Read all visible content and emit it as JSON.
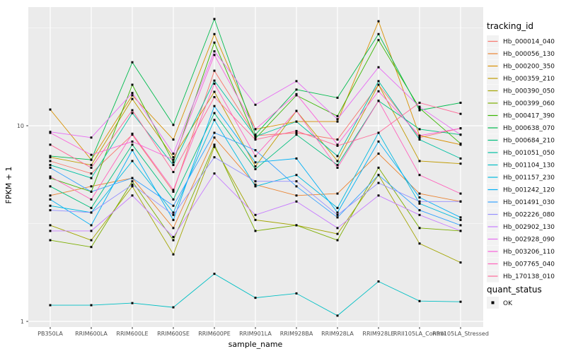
{
  "figure": {
    "xlabel": "sample_name",
    "ylabel": "FPKM + 1",
    "legend_title_tracking": "tracking_id",
    "legend_title_quant": "quant_status",
    "colors": {
      "panel_bg": "#EBEBEB",
      "gridline": "#FFFFFF",
      "tick_text": "#4D4D4D",
      "point": "#000000",
      "legend_key_bg": "#F2F2F2"
    }
  },
  "chart_data": {
    "type": "line",
    "title": "",
    "xlabel": "sample_name",
    "ylabel": "FPKM + 1",
    "y_scale": "log10",
    "ylim": [
      1,
      40
    ],
    "yticks": [
      1,
      10
    ],
    "grid": "on",
    "legend_position": "right",
    "quant_status": "OK",
    "x_categories": [
      "PB350LA",
      "RRIM600LA",
      "RRIM600LE",
      "RRIM600SE",
      "RRIM600PE",
      "RRIM901LA",
      "RRIM928BA",
      "RRIM928LA",
      "RRIM928LE",
      "RRII105LA_Control",
      "RRII105LA_Stressed"
    ],
    "series": [
      {
        "name": "Hb_000014_040",
        "color": "#F8766D",
        "values": [
          6.6,
          5.7,
          9.0,
          4.6,
          19.1,
          8.9,
          9.2,
          8.5,
          16.2,
          8.7,
          9.7
        ]
      },
      {
        "name": "Hb_000056_130",
        "color": "#EA8331",
        "values": [
          4.4,
          4.9,
          5.4,
          3.0,
          8.7,
          5.0,
          4.4,
          4.5,
          7.2,
          4.5,
          4.1
        ]
      },
      {
        "name": "Hb_000200_350",
        "color": "#D89000",
        "values": [
          12.1,
          6.7,
          14.3,
          8.5,
          29.4,
          9.6,
          10.5,
          10.5,
          34.2,
          8.9,
          8.0
        ]
      },
      {
        "name": "Hb_000359_210",
        "color": "#C09B00",
        "values": [
          6.9,
          6.3,
          13.7,
          6.9,
          14.9,
          6.2,
          11.9,
          6.6,
          16.2,
          6.6,
          6.4
        ]
      },
      {
        "name": "Hb_000390_050",
        "color": "#A3A500",
        "values": [
          3.1,
          2.6,
          4.9,
          2.2,
          7.8,
          3.3,
          3.1,
          2.8,
          5.6,
          2.5,
          2.0
        ]
      },
      {
        "name": "Hb_000399_060",
        "color": "#7CAE00",
        "values": [
          2.6,
          2.4,
          5.2,
          2.6,
          8.0,
          2.9,
          3.1,
          2.6,
          6.1,
          3.0,
          2.9
        ]
      },
      {
        "name": "Hb_000417_390",
        "color": "#39B600",
        "values": [
          5.4,
          4.6,
          16.2,
          6.5,
          26.6,
          8.6,
          14.3,
          11.2,
          27.4,
          12.3,
          8.1
        ]
      },
      {
        "name": "Hb_000638_070",
        "color": "#00BB4E",
        "values": [
          7.0,
          6.7,
          21.1,
          10.1,
          35.1,
          9.0,
          15.3,
          13.9,
          29.4,
          12.0,
          13.1
        ]
      },
      {
        "name": "Hb_000684_210",
        "color": "#00BF7D",
        "values": [
          4.9,
          3.8,
          8.0,
          4.2,
          11.6,
          6.0,
          9.0,
          6.3,
          13.4,
          9.6,
          9.0
        ]
      },
      {
        "name": "Hb_001051_050",
        "color": "#00C1A3",
        "values": [
          6.3,
          5.4,
          11.6,
          6.3,
          17.0,
          8.8,
          10.5,
          7.0,
          16.9,
          8.5,
          6.8
        ]
      },
      {
        "name": "Hb_001104_130",
        "color": "#00BFC4",
        "values": [
          1.21,
          1.21,
          1.24,
          1.18,
          1.75,
          1.32,
          1.39,
          1.07,
          1.6,
          1.27,
          1.26
        ]
      },
      {
        "name": "Hb_001157_230",
        "color": "#00BAE0",
        "values": [
          3.9,
          3.6,
          6.6,
          3.6,
          10.7,
          4.9,
          5.6,
          3.8,
          9.2,
          4.0,
          3.3
        ]
      },
      {
        "name": "Hb_001242_120",
        "color": "#00B0F6",
        "values": [
          4.2,
          3.1,
          7.5,
          3.3,
          12.6,
          6.5,
          6.8,
          3.6,
          8.3,
          4.3,
          3.4
        ]
      },
      {
        "name": "Hb_001491_030",
        "color": "#35A2FF",
        "values": [
          6.1,
          4.6,
          5.4,
          3.9,
          9.2,
          7.5,
          4.9,
          3.4,
          5.6,
          3.7,
          3.1
        ]
      },
      {
        "name": "Hb_002226_080",
        "color": "#9590FF",
        "values": [
          3.7,
          3.6,
          5.0,
          3.5,
          6.9,
          5.2,
          5.2,
          3.5,
          5.1,
          4.1,
          4.1
        ]
      },
      {
        "name": "Hb_002902_130",
        "color": "#C77CFF",
        "values": [
          2.9,
          2.9,
          4.4,
          2.7,
          5.7,
          3.5,
          4.1,
          3.0,
          4.4,
          3.5,
          2.9
        ]
      },
      {
        "name": "Hb_002928_090",
        "color": "#E76BF3",
        "values": [
          9.3,
          8.7,
          14.7,
          7.2,
          24.0,
          12.8,
          16.9,
          10.8,
          19.9,
          12.5,
          9.0
        ]
      },
      {
        "name": "Hb_003206_110",
        "color": "#FA62DB",
        "values": [
          9.2,
          7.1,
          8.3,
          6.7,
          23.0,
          9.6,
          14.5,
          8.0,
          15.0,
          8.9,
          9.7
        ]
      },
      {
        "name": "Hb_007765_040",
        "color": "#FF62BC",
        "values": [
          5.5,
          4.2,
          9.1,
          4.7,
          16.4,
          7.0,
          11.9,
          6.1,
          13.4,
          5.6,
          4.5
        ]
      },
      {
        "name": "Hb_170138_010",
        "color": "#FF6A98",
        "values": [
          8.0,
          6.1,
          12.0,
          5.8,
          14.0,
          8.5,
          9.4,
          7.9,
          9.2,
          13.1,
          11.5
        ]
      }
    ]
  }
}
